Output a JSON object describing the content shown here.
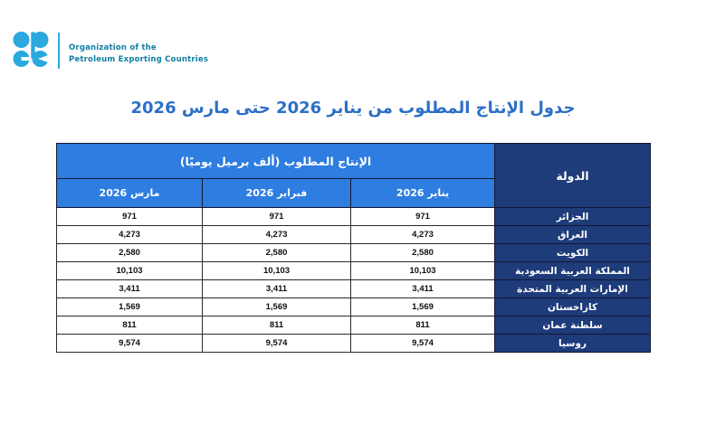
{
  "brand": {
    "org_name_line1": "Organization of the",
    "org_name_line2": "Petroleum Exporting Countries",
    "logo_color": "#29a9dd",
    "org_text_color": "#0d7fa6"
  },
  "page": {
    "title": "جدول الإنتاج المطلوب من يناير 2026 حتى مارس 2026",
    "title_color": "#2d6fc6",
    "background_color": "#ffffff"
  },
  "table": {
    "merged_header": "الإنتاج المطلوب (ألف برميل يوميًا)",
    "country_header": "الدولة",
    "month_headers": [
      "يناير 2026",
      "فبراير 2026",
      "مارس 2026"
    ],
    "header_bg": "#2e7de0",
    "country_col_bg": "#1e3b7a",
    "rows": [
      {
        "country": "الجزائر",
        "jan": "971",
        "feb": "971",
        "mar": "971"
      },
      {
        "country": "العراق",
        "jan": "4,273",
        "feb": "4,273",
        "mar": "4,273"
      },
      {
        "country": "الكويت",
        "jan": "2,580",
        "feb": "2,580",
        "mar": "2,580"
      },
      {
        "country": "المملكة العربية السعودية",
        "jan": "10,103",
        "feb": "10,103",
        "mar": "10,103"
      },
      {
        "country": "الإمارات العربية المتحدة",
        "jan": "3,411",
        "feb": "3,411",
        "mar": "3,411"
      },
      {
        "country": "كازاخستان",
        "jan": "1,569",
        "feb": "1,569",
        "mar": "1,569"
      },
      {
        "country": "سلطنة عمان",
        "jan": "811",
        "feb": "811",
        "mar": "811"
      },
      {
        "country": "روسيا",
        "jan": "9,574",
        "feb": "9,574",
        "mar": "9,574"
      }
    ]
  },
  "chart_data": {
    "type": "table",
    "title": "جدول الإنتاج المطلوب من يناير 2026 حتى مارس 2026",
    "unit": "ألف برميل يوميًا",
    "columns": [
      "الدولة",
      "يناير 2026",
      "فبراير 2026",
      "مارس 2026"
    ],
    "rows": [
      [
        "الجزائر",
        971,
        971,
        971
      ],
      [
        "العراق",
        4273,
        4273,
        4273
      ],
      [
        "الكويت",
        2580,
        2580,
        2580
      ],
      [
        "المملكة العربية السعودية",
        10103,
        10103,
        10103
      ],
      [
        "الإمارات العربية المتحدة",
        3411,
        3411,
        3411
      ],
      [
        "كازاخستان",
        1569,
        1569,
        1569
      ],
      [
        "سلطنة عمان",
        811,
        811,
        811
      ],
      [
        "روسيا",
        9574,
        9574,
        9574
      ]
    ]
  }
}
